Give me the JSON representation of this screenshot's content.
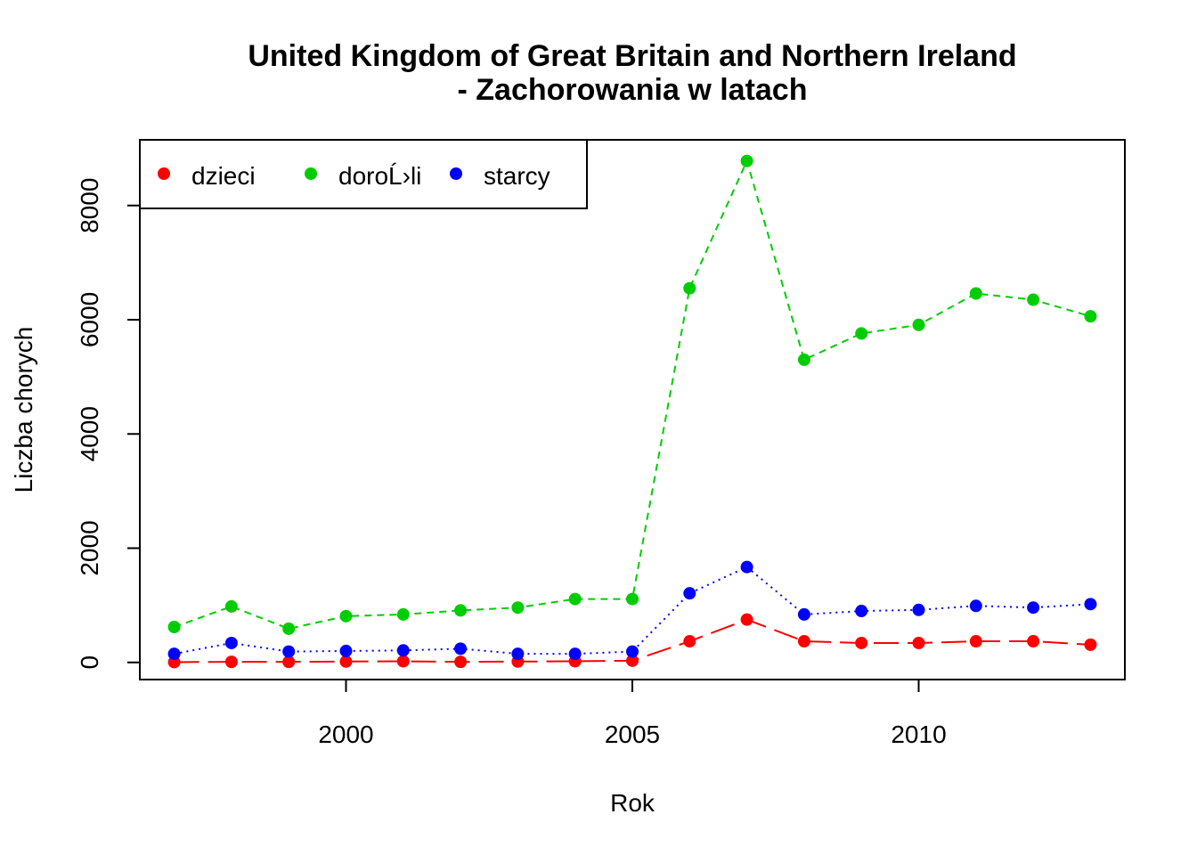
{
  "chart_data": {
    "type": "line",
    "title_line1": "United Kingdom of Great Britain and Northern Ireland",
    "title_line2": "- Zachorowania w latach",
    "xlabel": "Rok",
    "ylabel": "Liczba chorych",
    "xlim": [
      1996.4,
      2013.6
    ],
    "ylim": [
      -300,
      9150
    ],
    "x_ticks": [
      2000,
      2005,
      2010
    ],
    "y_ticks": [
      0,
      2000,
      4000,
      6000,
      8000
    ],
    "x": [
      1997,
      1998,
      1999,
      2000,
      2001,
      2002,
      2003,
      2004,
      2005,
      2006,
      2007,
      2008,
      2009,
      2010,
      2011,
      2012,
      2013
    ],
    "legend_position": "top-left",
    "series": [
      {
        "name": "dzieci",
        "color": "#FF0000",
        "line_style": "longdash",
        "values": [
          5,
          10,
          10,
          15,
          20,
          10,
          15,
          20,
          30,
          370,
          750,
          370,
          340,
          340,
          370,
          370,
          310
        ]
      },
      {
        "name": "doroĹ›li",
        "color": "#00CD00",
        "line_style": "dashed",
        "values": [
          620,
          980,
          590,
          810,
          840,
          910,
          960,
          1110,
          1110,
          6550,
          8780,
          5300,
          5760,
          5910,
          6460,
          6350,
          6060
        ]
      },
      {
        "name": "starcy",
        "color": "#0000FF",
        "line_style": "dotted",
        "values": [
          150,
          340,
          190,
          200,
          210,
          240,
          150,
          150,
          190,
          1210,
          1670,
          840,
          900,
          920,
          990,
          960,
          1020
        ]
      }
    ]
  }
}
